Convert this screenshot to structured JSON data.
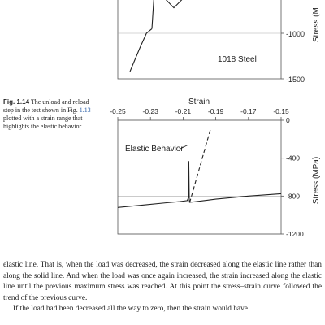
{
  "figure_top": {
    "y_axis_label_partial": "Stress (M",
    "y_tick_labels": [
      "-1000",
      "-1500"
    ],
    "annotation": "1018 Steel",
    "chart_data": {
      "type": "line",
      "title": "",
      "ylabel": "Stress (MPa)",
      "xlabel": "",
      "ylim": [
        -1500,
        -500
      ],
      "y_ticks": [
        -1000,
        -1500
      ],
      "grid": true,
      "series": [
        {
          "x": [
            0,
            0.45,
            0.75,
            1.0
          ],
          "y": [
            -1420,
            -1160,
            -1000,
            -950
          ]
        },
        {
          "x": [
            1.0,
            1.12,
            2.0,
            2.9
          ],
          "y": [
            -950,
            -500,
            -720,
            -500
          ]
        }
      ]
    }
  },
  "caption": {
    "label": "Fig. 1.14",
    "text_before_ref": " The unload and reload step in the test shown in Fig. ",
    "ref": "1.13",
    "text_after_ref": " plotted with a strain range that highlights the elastic behavior"
  },
  "figure_main": {
    "chart_data": {
      "type": "line",
      "title": "",
      "xlabel": "Strain",
      "ylabel": "Stress (MPa)",
      "xlim": [
        -0.25,
        -0.15
      ],
      "ylim": [
        -1200,
        0
      ],
      "x_ticks": [
        "-0.25",
        "-0.23",
        "-0.21",
        "-0.19",
        "-0.17",
        "-0.15"
      ],
      "y_ticks": [
        "0",
        "-400",
        "-800",
        "-1200"
      ],
      "grid": true,
      "annotation": "Elastic Behavior",
      "series": [
        {
          "style": "solid",
          "x": [
            -0.25,
            -0.235,
            -0.22,
            -0.212,
            -0.2075,
            -0.2068,
            -0.2065,
            -0.2062,
            -0.206,
            -0.204,
            -0.19,
            -0.17,
            -0.15
          ],
          "y": [
            -920,
            -895,
            -870,
            -858,
            -848,
            -820,
            -430,
            -840,
            -865,
            -862,
            -832,
            -800,
            -775
          ]
        },
        {
          "style": "dashed",
          "x": [
            -0.206,
            -0.193
          ],
          "y": [
            -870,
            -80
          ]
        }
      ]
    }
  },
  "body": {
    "p1": "elastic line. That is, when the load was decreased, the strain decreased along the elastic line rather than along the solid line. And when the load was once again increased, the strain increased along the elastic line until the previous maximum stress was reached. At this point the stress–strain curve followed the trend of the previous curve.",
    "p2": "If the load had been decreased all the way to zero, then the strain would have"
  }
}
